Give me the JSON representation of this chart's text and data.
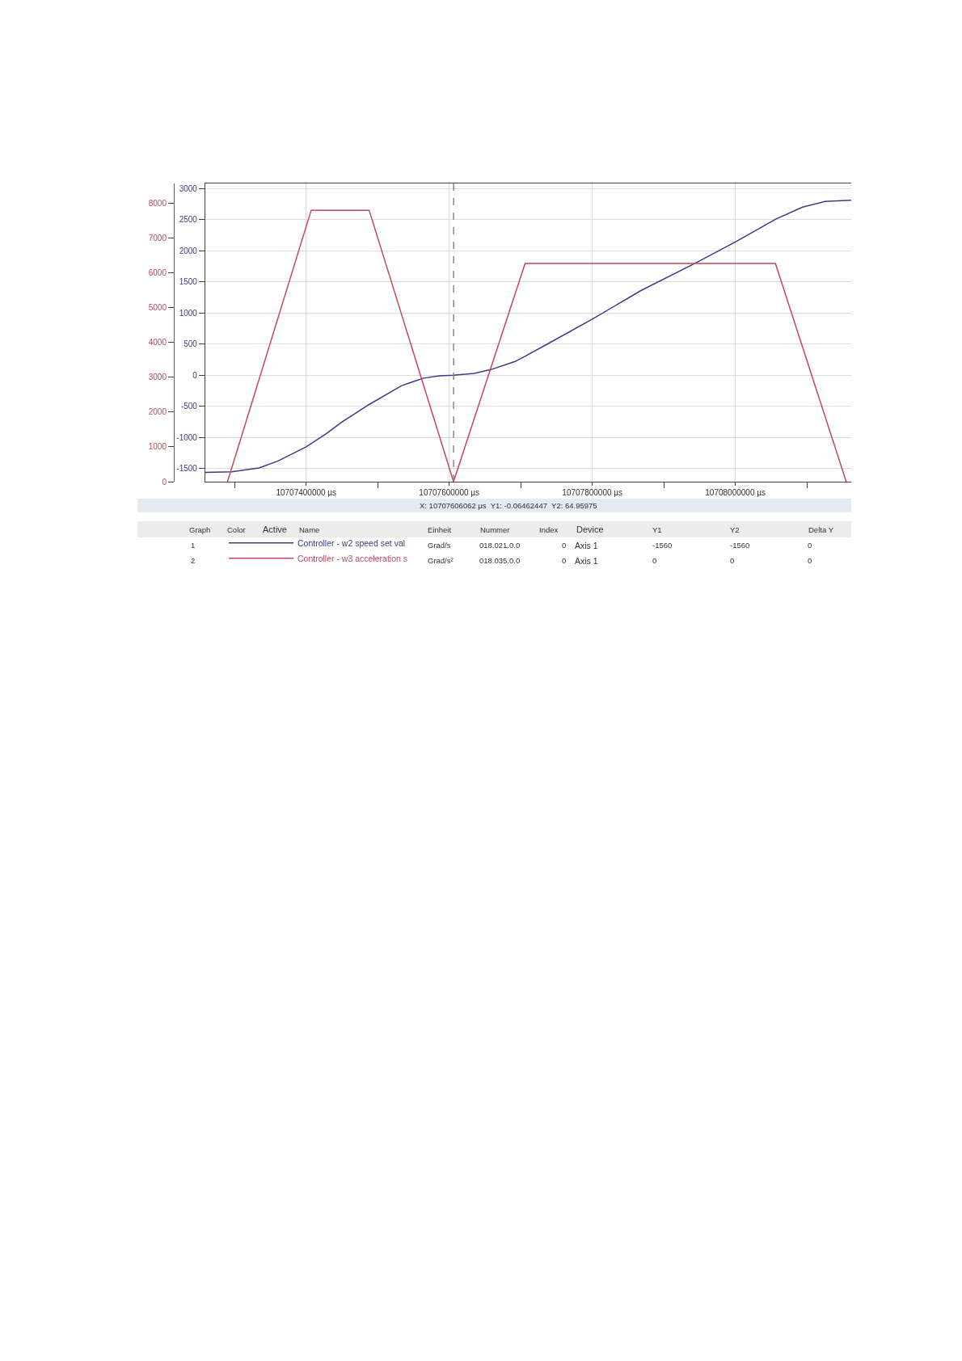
{
  "chart_data": {
    "type": "line",
    "xlim": [
      10707259000,
      10708162000
    ],
    "xticks": [
      {
        "value": 10707300000,
        "label": null
      },
      {
        "value": 10707400000,
        "label": "10707400000 µs"
      },
      {
        "value": 10707500000,
        "label": null
      },
      {
        "value": 10707600000,
        "label": "10707600000 µs"
      },
      {
        "value": 10707700000,
        "label": null
      },
      {
        "value": 10707800000,
        "label": "10707800000 µs"
      },
      {
        "value": 10707900000,
        "label": null
      },
      {
        "value": 10708000000,
        "label": "10708000000 µs"
      },
      {
        "value": 10708100000,
        "label": null
      }
    ],
    "ylim": [
      -1710,
      3080
    ],
    "yticks": [
      -1500,
      -1000,
      -500,
      0,
      500,
      1000,
      1500,
      2000,
      2500,
      3000
    ],
    "y2lim": [
      0,
      8570
    ],
    "y2ticks": [
      0,
      1000,
      2000,
      3000,
      4000,
      5000,
      6000,
      7000,
      8000
    ],
    "grid": true,
    "legend": "bottom",
    "series": [
      {
        "name": "Controller - w2 speed set val",
        "color": "#3b3b86",
        "x": [
          10707259000,
          10707296000,
          10707334000,
          10707360000,
          10707400000,
          10707428000,
          10707450000,
          10707488000,
          10707533000,
          10707563000,
          10707586000,
          10707606000,
          10707635000,
          10707658000,
          10707692000,
          10707707000,
          10707737000,
          10707800000,
          10707868000,
          10707944000,
          10708000000,
          10708057000,
          10708094000,
          10708125000,
          10708162000
        ],
        "values": [
          -1560,
          -1550,
          -1490,
          -1380,
          -1150,
          -940,
          -750,
          -470,
          -170,
          -50,
          -10,
          0,
          30,
          90,
          220,
          310,
          500,
          900,
          1360,
          1800,
          2140,
          2510,
          2700,
          2790,
          2810
        ]
      },
      {
        "name": "Controller - w3 acceleration s",
        "color": "#c0485a",
        "axis": "y2",
        "x": [
          10707290000,
          10707407000,
          10707488000,
          10707606000,
          10707706000,
          10708056000,
          10708155000
        ],
        "values": [
          0,
          7800,
          7800,
          0,
          6270,
          6270,
          0
        ]
      }
    ],
    "ref_lines": [
      {
        "axis": "x",
        "value": 10707606062,
        "color": "#808080",
        "line_style": "dashed"
      }
    ],
    "annotations": [
      "X: 10707606062 µs  Y1: -0.06462447  Y2: 64.95975",
      "Graph",
      "Color",
      "Active",
      "Name",
      "Einheit",
      "Nummer",
      "Index",
      "Device",
      "Y1",
      "Y2",
      "Delta Y",
      "1",
      "Grad/s",
      "018.021.0.0",
      "0",
      "Axis 1",
      "-1560",
      "-1560",
      "0",
      "2",
      "Grad/s²",
      "018.035.0.0",
      "0",
      "Axis 1",
      "0",
      "0",
      "0"
    ]
  }
}
